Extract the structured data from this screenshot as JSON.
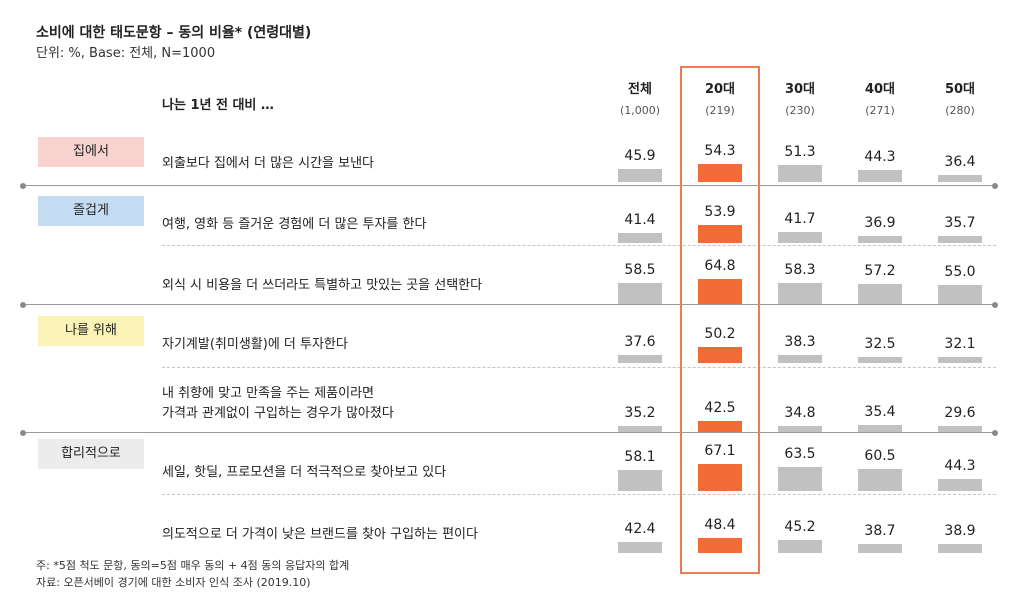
{
  "header": {
    "title": "소비에 대한 태도문항 – 동의 비율* (연령대별)",
    "subtitle": "단위: %, Base: 전체, N=1000",
    "lead": "나는 1년 전 대비 …"
  },
  "colors": {
    "highlight": "#f26a35",
    "bar": "#c1c1c1",
    "highlight_border": "#ee7b55"
  },
  "chart_data": {
    "type": "bar",
    "title": "소비에 대한 태도문항 – 동의 비율* (연령대별)",
    "unit": "%",
    "columns": [
      {
        "name": "전체",
        "n": "(1,000)"
      },
      {
        "name": "20대",
        "n": "(219)"
      },
      {
        "name": "30대",
        "n": "(230)"
      },
      {
        "name": "40대",
        "n": "(271)"
      },
      {
        "name": "50대",
        "n": "(280)"
      }
    ],
    "highlight_column": "20대",
    "groups": [
      {
        "label": "집에서",
        "color": "#f8d3cf",
        "rows": [
          {
            "text": [
              "외출보다 집에서 더 많은 시간을 보낸다"
            ],
            "values": [
              45.9,
              54.3,
              51.3,
              44.3,
              36.4
            ]
          }
        ]
      },
      {
        "label": "즐겁게",
        "color": "#c4dcf2",
        "rows": [
          {
            "text": [
              "여행, 영화 등 즐거운 경험에 더 많은 투자를 한다"
            ],
            "values": [
              41.4,
              53.9,
              41.7,
              36.9,
              35.7
            ]
          },
          {
            "text": [
              "외식 시 비용을 더 쓰더라도 특별하고 맛있는 곳을 선택한다"
            ],
            "values": [
              58.5,
              64.8,
              58.3,
              57.2,
              55.0
            ]
          }
        ]
      },
      {
        "label": "나를 위해",
        "color": "#faf3b6",
        "rows": [
          {
            "text": [
              "자기계발(취미생활)에 더 투자한다"
            ],
            "values": [
              37.6,
              50.2,
              38.3,
              32.5,
              32.1
            ]
          },
          {
            "text": [
              "내 취향에 맞고 만족을 주는 제품이라면",
              "가격과 관계없이 구입하는 경우가 많아졌다"
            ],
            "values": [
              35.2,
              42.5,
              34.8,
              35.4,
              29.6
            ]
          }
        ]
      },
      {
        "label": "합리적으로",
        "color": "#ececec",
        "rows": [
          {
            "text": [
              "세일, 핫딜, 프로모션을 더 적극적으로 찾아보고 있다"
            ],
            "values": [
              58.1,
              67.1,
              63.5,
              60.5,
              44.3
            ]
          },
          {
            "text": [
              "의도적으로 더 가격이 낮은 브랜드를 찾아 구입하는 편이다"
            ],
            "values": [
              42.4,
              48.4,
              45.2,
              38.7,
              38.9
            ]
          }
        ]
      }
    ]
  },
  "footnotes": [
    "주: *5점 척도 문항, 동의=5점 매우 동의 + 4점 동의 응답자의 합계",
    "자료: 오픈서베이 경기에 대한 소비자 인식 조사 (2019.10)"
  ]
}
